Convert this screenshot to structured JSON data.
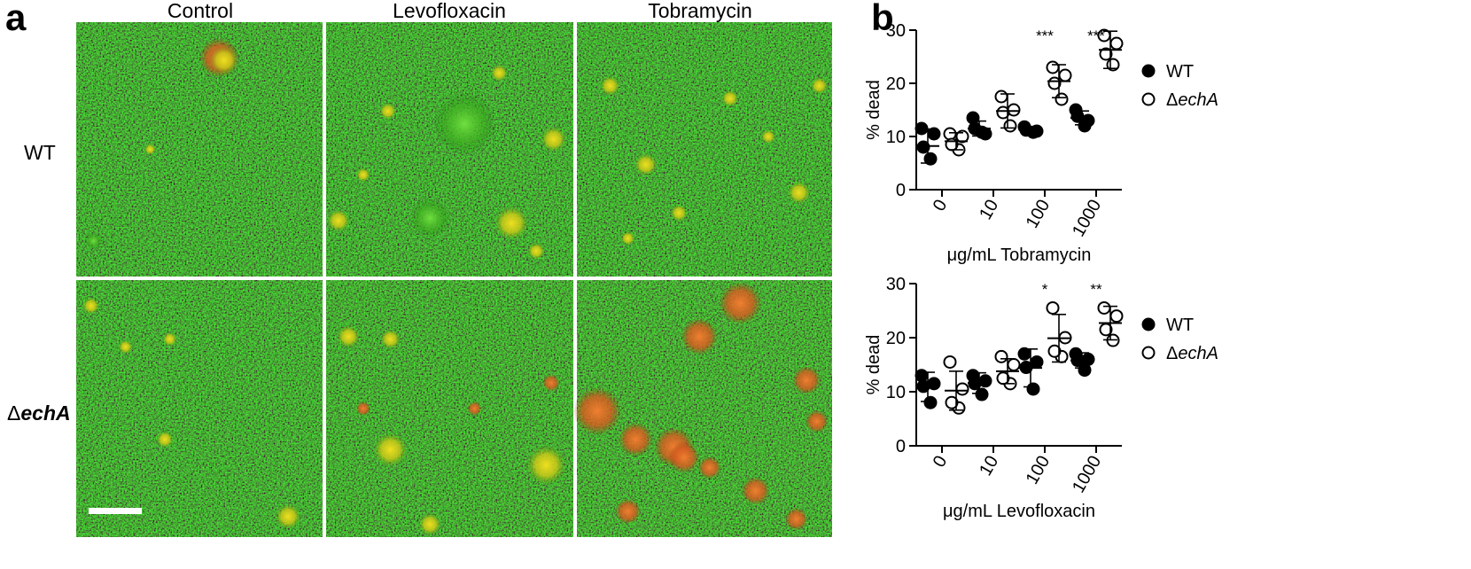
{
  "panel_a": {
    "letter": "a",
    "column_labels": [
      "Control",
      "Levofloxacin",
      "Tobramycin"
    ],
    "row_labels": {
      "wt": "WT",
      "mutant_prefix": "Δ",
      "mutant_gene": "echA"
    },
    "colors": {
      "live_stain": "#2f8a1e",
      "dead_stain": "#e0641e",
      "overlap": "#e8d21e",
      "background": "#12300c"
    }
  },
  "panel_b": {
    "letter": "b"
  },
  "chart_data": [
    {
      "type": "scatter",
      "xlabel": "μg/mL  Tobramycin",
      "ylabel": "% dead",
      "categories": [
        "0",
        "10",
        "100",
        "1000"
      ],
      "ylim": [
        0,
        30
      ],
      "yticks": [
        0,
        10,
        20,
        30
      ],
      "grid": false,
      "legend_position": "right",
      "significance": [
        "",
        "",
        "***",
        "***"
      ],
      "series": [
        {
          "name": "WT",
          "marker": "filled-circle",
          "points": [
            [
              11.5,
              10.5,
              5.8,
              8.0
            ],
            [
              13.5,
              10.5,
              10.8,
              11.5
            ],
            [
              11.8,
              11.0,
              10.8,
              11.2
            ],
            [
              15.0,
              13.0,
              12.0,
              13.8
            ]
          ],
          "mean": [
            8.2,
            11.5,
            11.2,
            13.5
          ],
          "sd": [
            3.2,
            1.4,
            0.5,
            1.3
          ]
        },
        {
          "name": "ΔechA",
          "marker": "open-circle",
          "points": [
            [
              10.5,
              10.0,
              7.5,
              8.5
            ],
            [
              17.5,
              15.0,
              12.0,
              14.5
            ],
            [
              23.0,
              21.5,
              17.0,
              20.0
            ],
            [
              29.0,
              27.5,
              23.5,
              25.5
            ]
          ],
          "mean": [
            9.1,
            14.8,
            20.4,
            26.3
          ],
          "sd": [
            1.6,
            3.2,
            3.1,
            3.5
          ]
        }
      ]
    },
    {
      "type": "scatter",
      "xlabel": "μg/mL Levofloxacin",
      "ylabel": "% dead",
      "categories": [
        "0",
        "10",
        "100",
        "1000"
      ],
      "ylim": [
        0,
        30
      ],
      "yticks": [
        0,
        10,
        20,
        30
      ],
      "grid": false,
      "legend_position": "right",
      "significance": [
        "",
        "",
        "*",
        "**"
      ],
      "series": [
        {
          "name": "WT",
          "marker": "filled-circle",
          "points": [
            [
              13.0,
              11.5,
              8.0,
              11.0
            ],
            [
              13.0,
              12.0,
              9.5,
              11.5
            ],
            [
              17.0,
              15.5,
              10.5,
              14.5
            ],
            [
              17.0,
              16.0,
              14.0,
              15.8
            ]
          ],
          "mean": [
            10.9,
            11.6,
            14.4,
            15.8
          ],
          "sd": [
            2.7,
            1.9,
            3.5,
            1.4
          ]
        },
        {
          "name": "ΔechA",
          "marker": "open-circle",
          "points": [
            [
              15.5,
              10.5,
              7.0,
              8.0
            ],
            [
              16.5,
              15.0,
              11.5,
              12.5
            ],
            [
              25.5,
              20.0,
              16.5,
              17.5
            ],
            [
              25.5,
              24.0,
              19.5,
              21.5
            ]
          ],
          "mean": [
            10.2,
            13.8,
            19.9,
            22.7
          ],
          "sd": [
            3.6,
            2.3,
            4.4,
            3.1
          ]
        }
      ]
    }
  ]
}
